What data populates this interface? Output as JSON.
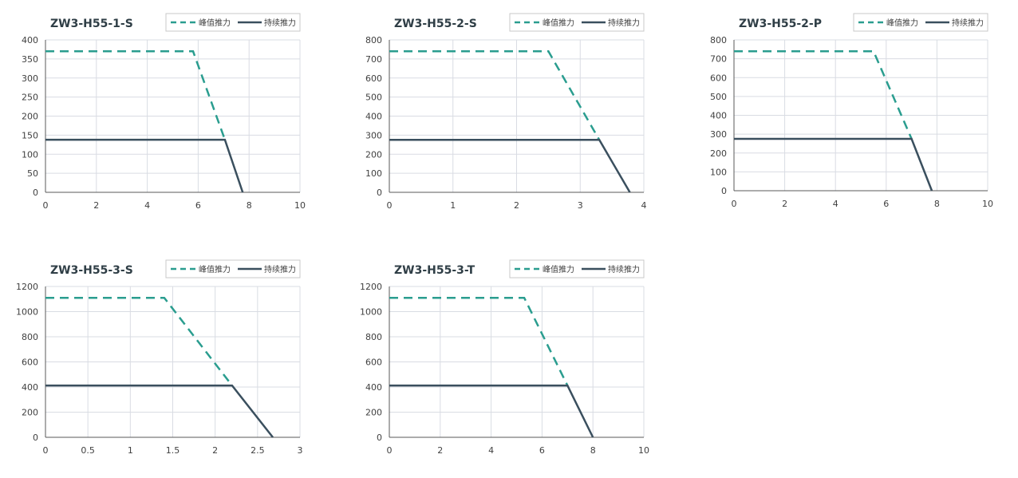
{
  "legend": {
    "peak_label": "峰值推力",
    "continuous_label": "持续推力"
  },
  "colors": {
    "peak": "#2A9D8F",
    "continuous": "#3A4F5E",
    "grid": "#D9DCE3",
    "axis": "#595959",
    "text": "#404040",
    "title": "#2F3E46"
  },
  "chart_data": [
    {
      "type": "line",
      "title": "ZW3-H55-1-S",
      "xlim": [
        0,
        10
      ],
      "ylim": [
        0,
        400
      ],
      "xticks": [
        0,
        2,
        4,
        6,
        8,
        10
      ],
      "yticks": [
        0,
        50,
        100,
        150,
        200,
        250,
        300,
        350,
        400
      ],
      "grid": true,
      "legend_position": "top-right",
      "series": [
        {
          "name": "峰值推力",
          "style": "dashed",
          "x": [
            0,
            5.8,
            7.05
          ],
          "y": [
            370,
            370,
            138
          ]
        },
        {
          "name": "持续推力",
          "style": "solid",
          "x": [
            0,
            7.05,
            7.75
          ],
          "y": [
            138,
            138,
            0
          ]
        }
      ]
    },
    {
      "type": "line",
      "title": "ZW3-H55-2-S",
      "xlim": [
        0,
        4
      ],
      "ylim": [
        0,
        800
      ],
      "xticks": [
        0,
        1,
        2,
        3,
        4
      ],
      "yticks": [
        0,
        100,
        200,
        300,
        400,
        500,
        600,
        700,
        800
      ],
      "grid": true,
      "legend_position": "top-right",
      "series": [
        {
          "name": "峰值推力",
          "style": "dashed",
          "x": [
            0,
            2.5,
            3.3
          ],
          "y": [
            740,
            740,
            275
          ]
        },
        {
          "name": "持续推力",
          "style": "solid",
          "x": [
            0,
            3.3,
            3.78
          ],
          "y": [
            275,
            275,
            0
          ]
        }
      ]
    },
    {
      "type": "line",
      "title": "ZW3-H55-2-P",
      "xlim": [
        0,
        10
      ],
      "ylim": [
        0,
        800
      ],
      "xticks": [
        0,
        2,
        4,
        6,
        8,
        10
      ],
      "yticks": [
        0,
        100,
        200,
        300,
        400,
        500,
        600,
        700,
        800
      ],
      "grid": true,
      "legend_position": "top-right",
      "series": [
        {
          "name": "峰值推力",
          "style": "dashed",
          "x": [
            0,
            5.5,
            7.0
          ],
          "y": [
            740,
            740,
            275
          ]
        },
        {
          "name": "持续推力",
          "style": "solid",
          "x": [
            0,
            7.0,
            7.8
          ],
          "y": [
            275,
            275,
            0
          ]
        }
      ]
    },
    {
      "type": "line",
      "title": "ZW3-H55-3-S",
      "xlim": [
        0,
        3
      ],
      "ylim": [
        0,
        1200
      ],
      "xticks": [
        0,
        0.5,
        1,
        1.5,
        2,
        2.5,
        3
      ],
      "yticks": [
        0,
        200,
        400,
        600,
        800,
        1000,
        1200
      ],
      "grid": true,
      "legend_position": "top-right",
      "series": [
        {
          "name": "峰值推力",
          "style": "dashed",
          "x": [
            0,
            1.4,
            2.2
          ],
          "y": [
            1110,
            1110,
            412
          ]
        },
        {
          "name": "持续推力",
          "style": "solid",
          "x": [
            0,
            2.2,
            2.68
          ],
          "y": [
            412,
            412,
            0
          ]
        }
      ]
    },
    {
      "type": "line",
      "title": "ZW3-H55-3-T",
      "xlim": [
        0,
        10
      ],
      "ylim": [
        0,
        1200
      ],
      "xticks": [
        0,
        2,
        4,
        6,
        8,
        10
      ],
      "yticks": [
        0,
        200,
        400,
        600,
        800,
        1000,
        1200
      ],
      "grid": true,
      "legend_position": "top-right",
      "series": [
        {
          "name": "峰值推力",
          "style": "dashed",
          "x": [
            0,
            5.3,
            7.0
          ],
          "y": [
            1110,
            1110,
            412
          ]
        },
        {
          "name": "持续推力",
          "style": "solid",
          "x": [
            0,
            7.0,
            8.0
          ],
          "y": [
            412,
            412,
            0
          ]
        }
      ]
    }
  ]
}
